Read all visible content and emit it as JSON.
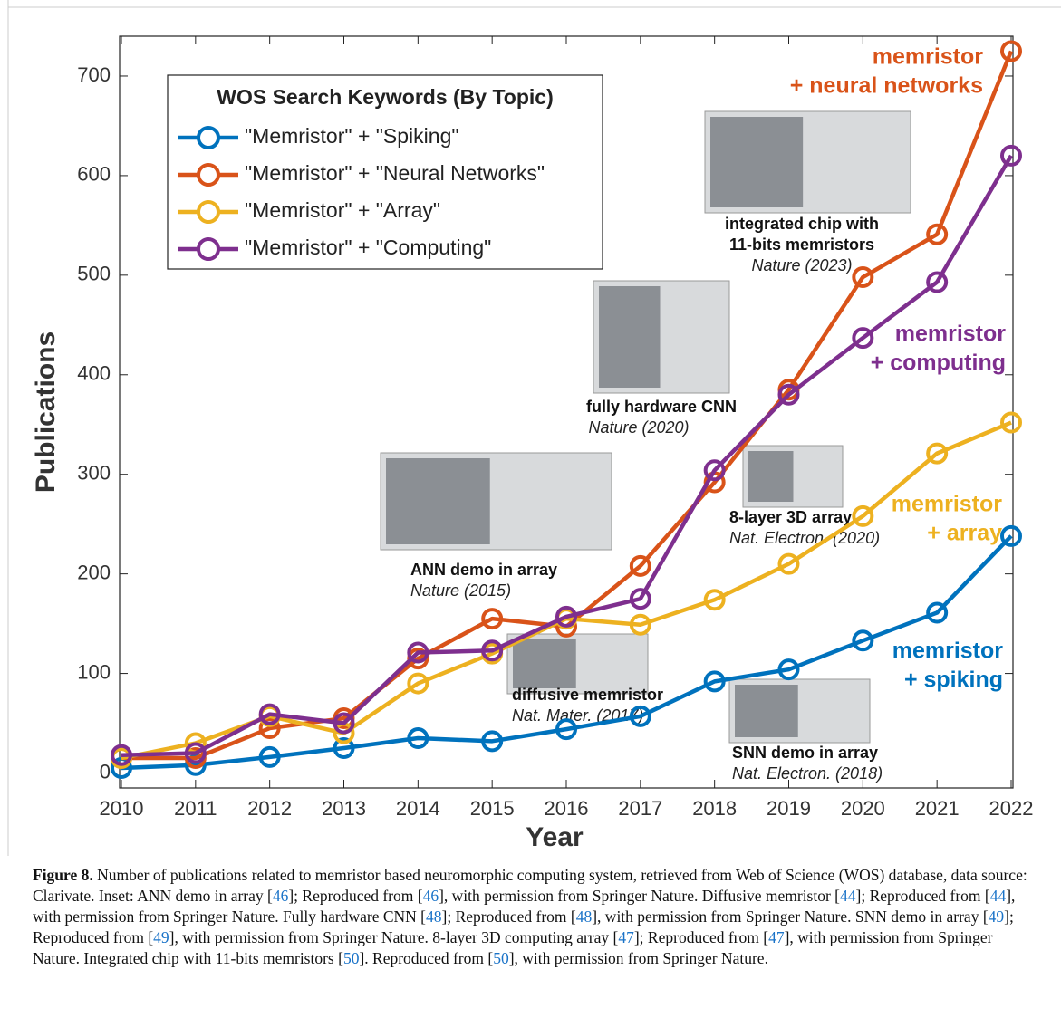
{
  "chart_data": {
    "type": "line",
    "x_label": "Year",
    "y_label": "Publications",
    "x": [
      2010,
      2011,
      2012,
      2013,
      2014,
      2015,
      2016,
      2017,
      2018,
      2019,
      2020,
      2021,
      2022
    ],
    "xlim": [
      2010,
      2022
    ],
    "xticks": [
      2010,
      2011,
      2012,
      2013,
      2014,
      2015,
      2016,
      2017,
      2018,
      2019,
      2020,
      2021,
      2022
    ],
    "ylim": [
      -15,
      740
    ],
    "yticks": [
      0,
      100,
      200,
      300,
      400,
      500,
      600,
      700
    ],
    "grid": false,
    "legend": {
      "title": "WOS Search Keywords (By Topic)",
      "position": "upper-left"
    },
    "series": [
      {
        "name": "\"Memristor\" + \"Spiking\"",
        "color": "#0072bd",
        "values": [
          5,
          8,
          16,
          25,
          35,
          32,
          44,
          57,
          92,
          104,
          133,
          161,
          238
        ]
      },
      {
        "name": "\"Memristor\" + \"Neural Networks\"",
        "color": "#d95319",
        "values": [
          15,
          15,
          45,
          55,
          115,
          155,
          147,
          208,
          292,
          385,
          498,
          541,
          725
        ]
      },
      {
        "name": "\"Memristor\" + \"Array\"",
        "color": "#edb120",
        "values": [
          15,
          30,
          57,
          40,
          90,
          120,
          155,
          149,
          174,
          210,
          258,
          321,
          352
        ]
      },
      {
        "name": "\"Memristor\" + \"Computing\"",
        "color": "#7e2f8e",
        "values": [
          18,
          20,
          59,
          50,
          121,
          123,
          157,
          175,
          304,
          380,
          437,
          493,
          620
        ]
      }
    ],
    "annotations": [
      {
        "lines": [
          "memristor",
          "+ neural networks"
        ],
        "series": 1
      },
      {
        "lines": [
          "memristor",
          "+ computing"
        ],
        "series": 3
      },
      {
        "lines": [
          "memristor",
          "+ array"
        ],
        "series": 2
      },
      {
        "lines": [
          "memristor",
          "+ spiking"
        ],
        "series": 0
      }
    ],
    "insets": [
      {
        "lines": [
          "integrated chip with",
          "11-bits memristors"
        ],
        "journal": "Nature (2023)"
      },
      {
        "lines": [
          "fully hardware CNN"
        ],
        "journal": "Nature (2020)"
      },
      {
        "lines": [
          "8-layer 3D array"
        ],
        "journal": "Nat. Electron. (2020)"
      },
      {
        "lines": [
          "ANN demo in array"
        ],
        "journal": "Nature (2015)"
      },
      {
        "lines": [
          "diffusive memristor"
        ],
        "journal": "Nat. Mater. (2017)"
      },
      {
        "lines": [
          "SNN demo in array"
        ],
        "journal": "Nat. Electron. (2018)"
      }
    ]
  },
  "caption": {
    "label": "Figure 8.",
    "parts": [
      {
        "text": " Number of publications related to memristor based neuromorphic computing system, retrieved from Web of Science (WOS) database, data source: Clarivate. Inset: ANN demo in array ["
      },
      {
        "ref": "46"
      },
      {
        "text": "]; Reproduced from ["
      },
      {
        "ref": "46"
      },
      {
        "text": "], with permission from Springer Nature. Diffusive memristor ["
      },
      {
        "ref": "44"
      },
      {
        "text": "]; Reproduced from ["
      },
      {
        "ref": "44"
      },
      {
        "text": "], with permission from Springer Nature. Fully hardware CNN ["
      },
      {
        "ref": "48"
      },
      {
        "text": "]; Reproduced from ["
      },
      {
        "ref": "48"
      },
      {
        "text": "], with permission from Springer Nature. SNN demo in array ["
      },
      {
        "ref": "49"
      },
      {
        "text": "]; Reproduced from ["
      },
      {
        "ref": "49"
      },
      {
        "text": "], with permission from Springer Nature. 8-layer 3D computing array ["
      },
      {
        "ref": "47"
      },
      {
        "text": "]; Reproduced from ["
      },
      {
        "ref": "47"
      },
      {
        "text": "], with permission from Springer Nature. Integrated chip with 11-bits memristors ["
      },
      {
        "ref": "50"
      },
      {
        "text": "]. Reproduced from ["
      },
      {
        "ref": "50"
      },
      {
        "text": "], with permission from Springer Nature."
      }
    ]
  }
}
